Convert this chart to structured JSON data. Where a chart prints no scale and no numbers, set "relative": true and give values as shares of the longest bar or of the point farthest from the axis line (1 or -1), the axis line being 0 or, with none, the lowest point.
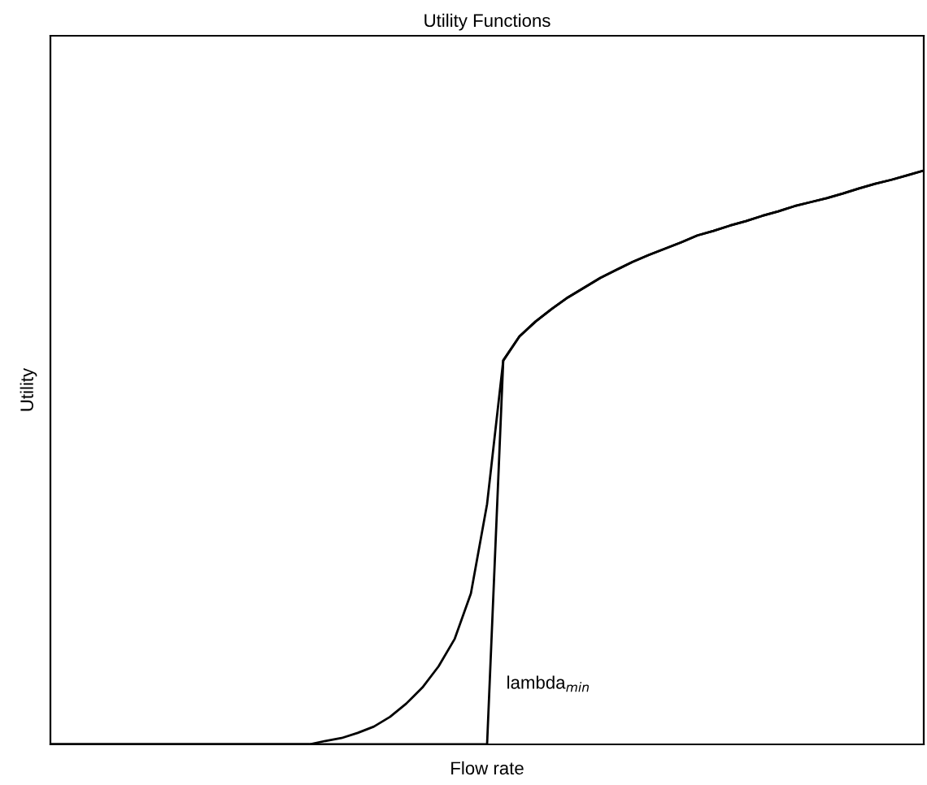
{
  "chart_data": {
    "type": "line",
    "title": "Utility Functions",
    "xlabel": "Flow rate",
    "ylabel": "Utility",
    "relative": true,
    "grid": false,
    "legend": false,
    "marker": "none",
    "line_style": "solid",
    "annotations": [
      "lambda$_{min}$"
    ],
    "categories": [
      null,
      null,
      null,
      null,
      null,
      null,
      null,
      null,
      null,
      null,
      null,
      null,
      null,
      null,
      null,
      null,
      null,
      null,
      null,
      null,
      null,
      null,
      null,
      null,
      null,
      null,
      null,
      null,
      null,
      null,
      null,
      null,
      null,
      null,
      null,
      null,
      null,
      null,
      null,
      null,
      null,
      null,
      null,
      null,
      null,
      null,
      null,
      null,
      null,
      null,
      null,
      null,
      null,
      null,
      null
    ],
    "series": [
      {
        "color": "#000000",
        "values": [
          0,
          0,
          0,
          0,
          0,
          0,
          0,
          0,
          0,
          0,
          0,
          0,
          0,
          0,
          0,
          0,
          0,
          0.006,
          0.011,
          0.02,
          0.031,
          0.048,
          0.071,
          0.099,
          0.136,
          0.184,
          0.263,
          0.419,
          0.669,
          0.711,
          0.737,
          0.759,
          0.779,
          0.796,
          0.813,
          0.827,
          0.841,
          0.853,
          0.864,
          0.875,
          0.887,
          0.895,
          0.904,
          0.912,
          0.921,
          0.929,
          0.938,
          0.945,
          0.952,
          0.96,
          0.969,
          0.977,
          0.984,
          0.992,
          1
        ]
      },
      {
        "color": "#000000",
        "values": [
          0,
          0,
          0,
          0,
          0,
          0,
          0,
          0,
          0,
          0,
          0,
          0,
          0,
          0,
          0,
          0,
          0,
          0,
          0,
          0,
          0,
          0,
          0,
          0,
          0,
          0,
          0,
          0,
          0.669,
          0.711,
          0.737,
          0.759,
          0.779,
          0.796,
          0.813,
          0.827,
          0.841,
          0.853,
          0.864,
          0.875,
          0.887,
          0.895,
          0.904,
          0.912,
          0.921,
          0.929,
          0.938,
          0.945,
          0.952,
          0.96,
          0.969,
          0.977,
          0.984,
          0.992,
          1
        ]
      }
    ]
  }
}
